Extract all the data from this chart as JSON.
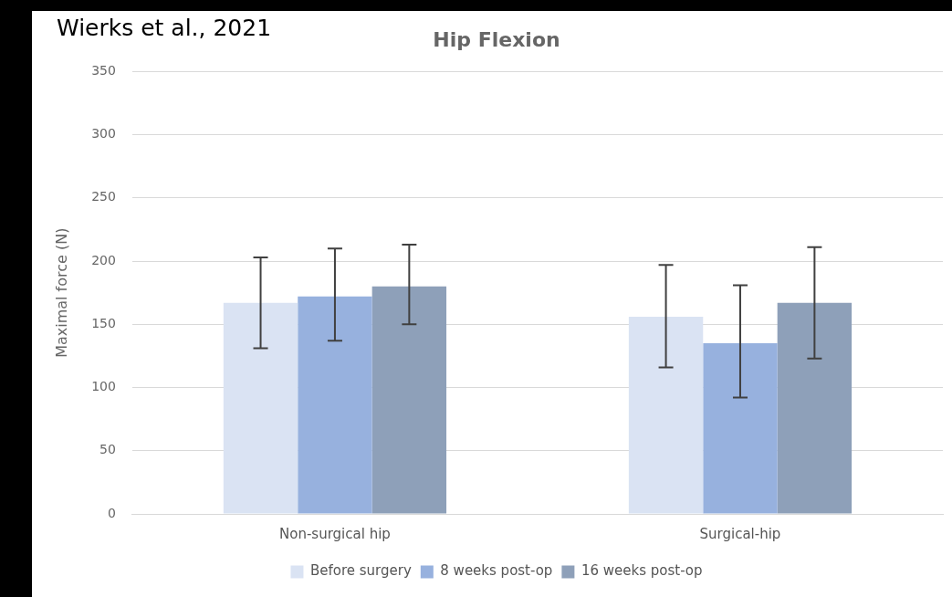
{
  "chart_data": {
    "type": "bar",
    "title": "Hip Flexion",
    "ylabel": "Maximal force (N)",
    "annotations": [
      "Wierks et al., 2021"
    ],
    "categories": [
      "Non-surgical hip",
      "Surgical-hip"
    ],
    "series": [
      {
        "name": "Before surgery",
        "color": "#dae3f3",
        "values": [
          167,
          156
        ],
        "errors": [
          [
            131,
            203
          ],
          [
            116,
            197
          ]
        ]
      },
      {
        "name": "8 weeks post-op",
        "color": "#97b1de",
        "values": [
          172,
          135
        ],
        "errors": [
          [
            137,
            210
          ],
          [
            92,
            181
          ]
        ]
      },
      {
        "name": "16 weeks post-op",
        "color": "#8ea0b9",
        "values": [
          180,
          167
        ],
        "errors": [
          [
            150,
            213
          ],
          [
            123,
            211
          ]
        ]
      }
    ],
    "ylim": [
      0,
      350
    ],
    "yticks": [
      0,
      50,
      100,
      150,
      200,
      250,
      300,
      350
    ],
    "grid": "y",
    "legend": "bottom"
  }
}
